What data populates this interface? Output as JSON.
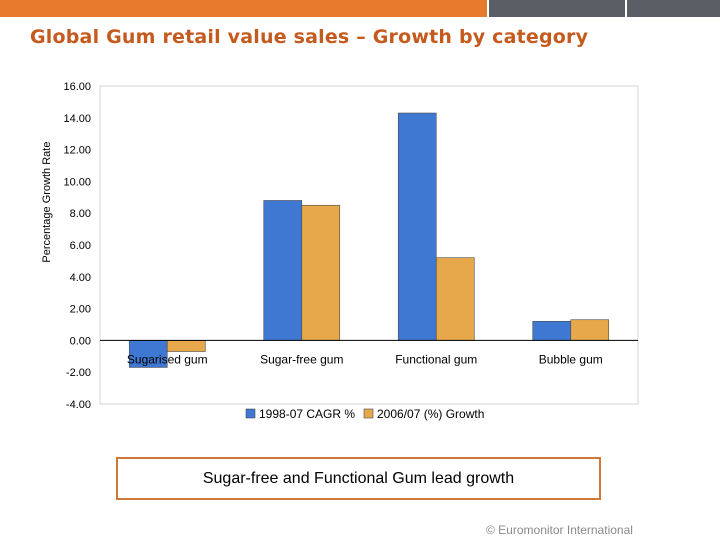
{
  "title": "Global Gum retail value sales – Growth by category",
  "colors": {
    "accent_orange": "#e87a2b",
    "title": "#c55a1e",
    "series1": "#3f78d2",
    "series2": "#e6a84a",
    "bar_gray": "#5a5f66"
  },
  "chart_data": {
    "type": "bar",
    "title": "",
    "ylabel": "Percentage Growth Rate",
    "xlabel": "",
    "ylim": [
      -4,
      16
    ],
    "yticks": [
      "16.00",
      "14.00",
      "12.00",
      "10.00",
      "8.00",
      "6.00",
      "4.00",
      "2.00",
      "0.00",
      "-2.00",
      "-4.00"
    ],
    "ytick_values": [
      16,
      14,
      12,
      10,
      8,
      6,
      4,
      2,
      0,
      -2,
      -4
    ],
    "categories": [
      "Sugarised gum",
      "Sugar-free gum",
      "Functional gum",
      "Bubble gum"
    ],
    "series": [
      {
        "name": "1998-07 CAGR %",
        "values": [
          -1.7,
          8.8,
          14.3,
          1.2
        ]
      },
      {
        "name": "2006/07 (%) Growth",
        "values": [
          -0.7,
          8.5,
          5.2,
          1.3
        ]
      }
    ],
    "legend": "bottom",
    "grid": false
  },
  "callout": "Sugar-free and Functional Gum lead growth",
  "footer": "© Euromonitor International"
}
